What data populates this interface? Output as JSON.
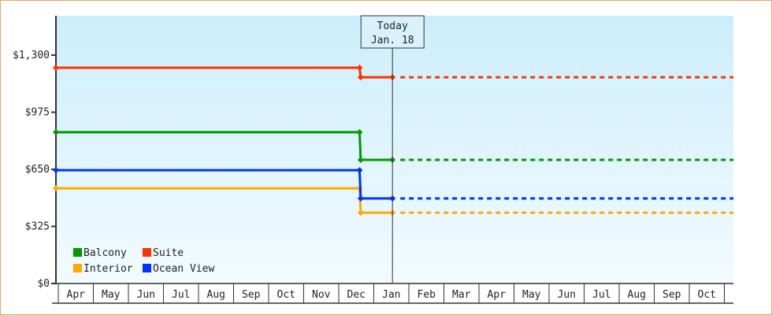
{
  "chart_data": {
    "type": "line",
    "title": "",
    "xlabel": "",
    "ylabel": "",
    "ylim": [
      0,
      1300
    ],
    "yticks": [
      0,
      325,
      650,
      975,
      1300
    ],
    "ytick_labels": [
      "$0",
      "$325",
      "$650",
      "$975",
      "$1,300"
    ],
    "xtick_labels": [
      "Apr",
      "May",
      "Jun",
      "Jul",
      "Aug",
      "Sep",
      "Oct",
      "Nov",
      "Dec",
      "Jan",
      "Feb",
      "Mar",
      "Apr",
      "May",
      "Jun",
      "Jul",
      "Aug",
      "Sep",
      "Oct"
    ],
    "grid": false,
    "legend_placement": "bottom-left",
    "today": {
      "line1": "Today",
      "line2": "Jan. 18",
      "date": "Jan 18"
    },
    "series": [
      {
        "name": "Balcony",
        "color": "#009900",
        "points": [
          [
            "Apr 1",
            861
          ],
          [
            "Dec 20",
            861
          ],
          [
            "Dec 21",
            704
          ],
          [
            "Jan 18",
            704
          ]
        ],
        "projected": 704
      },
      {
        "name": "Suite",
        "color": "#ff3300",
        "points": [
          [
            "Apr 1",
            1228
          ],
          [
            "Dec 20",
            1228
          ],
          [
            "Dec 21",
            1174
          ],
          [
            "Jan 18",
            1174
          ]
        ],
        "projected": 1174
      },
      {
        "name": "Interior",
        "color": "#ffaa00",
        "points": [
          [
            "Apr 1",
            542
          ],
          [
            "Dec 20",
            542
          ],
          [
            "Dec 21",
            403
          ],
          [
            "Jan 18",
            403
          ]
        ],
        "projected": 403
      },
      {
        "name": "Ocean View",
        "color": "#0033ff",
        "points": [
          [
            "Apr 1",
            645
          ],
          [
            "Dec 20",
            645
          ],
          [
            "Dec 21",
            484
          ],
          [
            "Jan 18",
            484
          ]
        ],
        "projected": 484
      }
    ]
  }
}
